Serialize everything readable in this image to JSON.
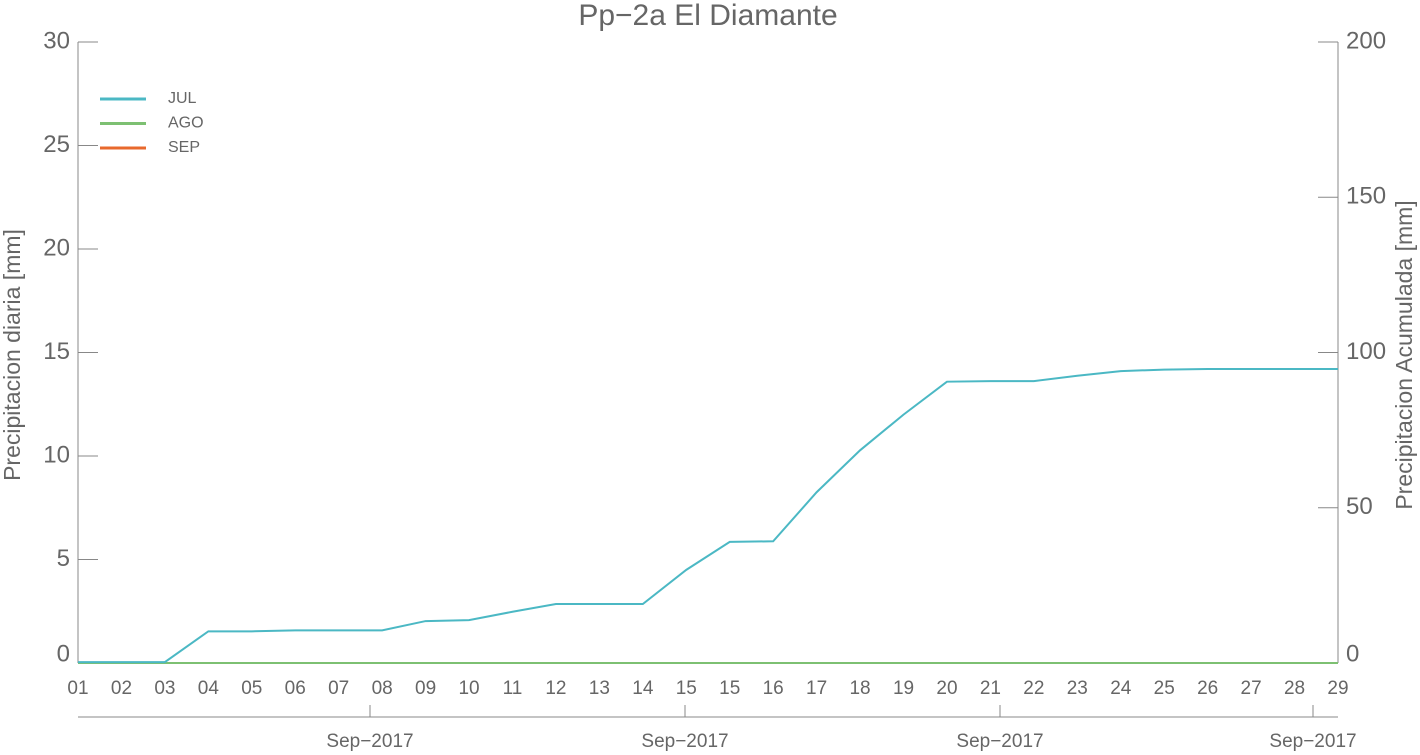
{
  "chart_data": {
    "type": "line",
    "title": "Pp−2a El Diamante",
    "y_label": "Precipitacion diaria [mm]",
    "y2_label": "Precipitacion Acumulada [mm]",
    "categories": [
      "01",
      "02",
      "03",
      "04",
      "05",
      "06",
      "07",
      "08",
      "09",
      "10",
      "11",
      "12",
      "13",
      "14",
      "15",
      "15",
      "16",
      "17",
      "18",
      "19",
      "20",
      "21",
      "22",
      "23",
      "24",
      "25",
      "26",
      "27",
      "28",
      "29"
    ],
    "x_secondary_labels": [
      "Sep−2017",
      "Sep−2017",
      "Sep−2017",
      "Sep−2017"
    ],
    "ylim": [
      0,
      30
    ],
    "yticks": [
      0,
      5,
      10,
      15,
      20,
      25,
      30
    ],
    "y2lim": [
      0,
      200
    ],
    "y2ticks": [
      0,
      50,
      100,
      150,
      200
    ],
    "legend": "upper-left",
    "series": [
      {
        "name": "JUL",
        "color": "#4bb8c4",
        "axis": "y2",
        "values": [
          0.3,
          0.3,
          0.3,
          10.2,
          10.2,
          10.5,
          10.5,
          10.5,
          13.5,
          13.8,
          16.5,
          19,
          19,
          19,
          30,
          39,
          39.2,
          55,
          68.5,
          80,
          90.6,
          90.8,
          90.8,
          92.5,
          94,
          94.5,
          94.7,
          94.7,
          94.7,
          94.7
        ]
      },
      {
        "name": "AGO",
        "color": "#7dc072",
        "axis": "y2",
        "values": [
          0,
          0,
          0,
          0,
          0,
          0,
          0,
          0,
          0,
          0,
          0,
          0,
          0,
          0,
          0,
          0,
          0,
          0,
          0,
          0,
          0,
          0,
          0,
          0,
          0,
          0,
          0,
          0,
          0,
          0
        ]
      },
      {
        "name": "SEP",
        "color": "#e8692d",
        "axis": "y2",
        "values": [
          0,
          0,
          0,
          0,
          0,
          0,
          0,
          0,
          0,
          0,
          0,
          0,
          0,
          0,
          0,
          0,
          0,
          0,
          0,
          0,
          0,
          0,
          0,
          0,
          0,
          0,
          0,
          0,
          0,
          0
        ]
      }
    ]
  }
}
